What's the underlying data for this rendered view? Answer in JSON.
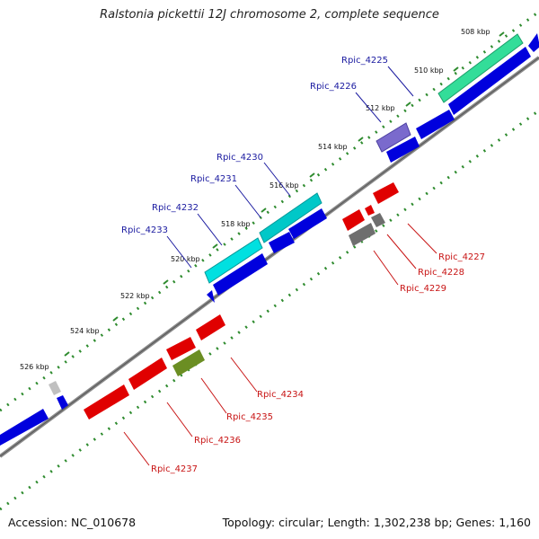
{
  "title": "Ralstonia pickettii 12J chromosome 2, complete sequence",
  "footer": {
    "accession": "Accession: NC_010678",
    "summary": "Topology: circular; Length: 1,302,238 bp; Genes: 1,160"
  },
  "colors": {
    "backbone": "#8a8a8a",
    "cds_blue": "#0000dd",
    "cds_red": "#e00000",
    "trna_cyan": "#00c8c8",
    "rrna_green": "#33dd99",
    "misc_purple": "#7a6acd",
    "grey_feature": "#6e6e6e",
    "olive_feature": "#6b8e23",
    "gc_dots": "#2e8b2e",
    "label_blue": "#1a1aa0",
    "label_red": "#c81414"
  },
  "ticks": [
    {
      "label": "508 kbp"
    },
    {
      "label": "510 kbp"
    },
    {
      "label": "512 kbp"
    },
    {
      "label": "514 kbp"
    },
    {
      "label": "516 kbp"
    },
    {
      "label": "518 kbp"
    },
    {
      "label": "520 kbp"
    },
    {
      "label": "522 kbp"
    },
    {
      "label": "524 kbp"
    },
    {
      "label": "526 kbp"
    }
  ],
  "genes_forward": [
    "Rpic_4225",
    "Rpic_4226",
    "Rpic_4230",
    "Rpic_4231",
    "Rpic_4232",
    "Rpic_4233"
  ],
  "genes_reverse": [
    "Rpic_4227",
    "Rpic_4228",
    "Rpic_4229",
    "Rpic_4234",
    "Rpic_4235",
    "Rpic_4236",
    "Rpic_4237"
  ]
}
